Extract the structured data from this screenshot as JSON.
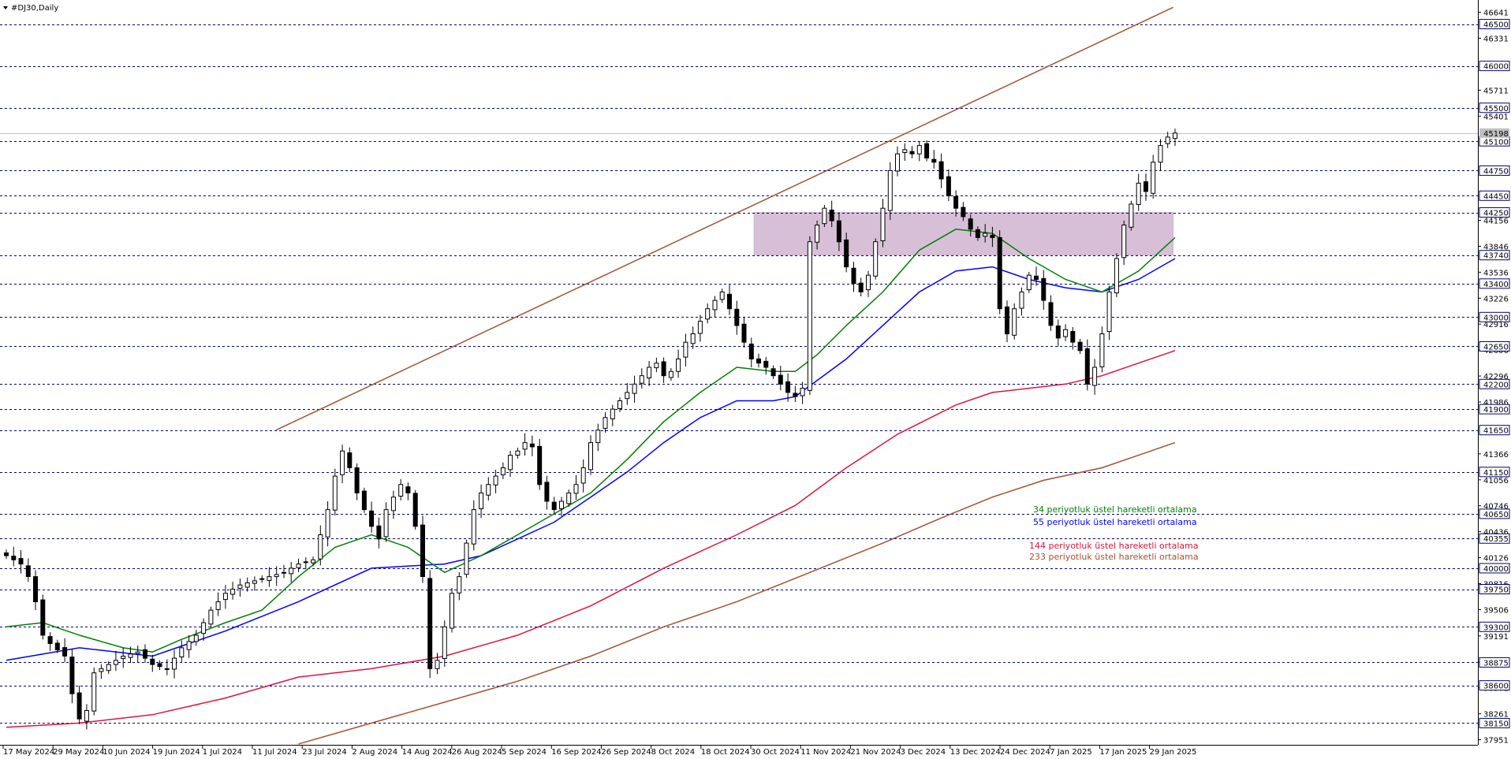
{
  "window": {
    "symbol_label": "#DJ30,Daily"
  },
  "colors": {
    "background": "#ffffff",
    "grid": "#000080",
    "candle": "#000000",
    "ema34": "#008000",
    "ema55": "#0000ff",
    "ema144": "#dc143c",
    "ema233": "#a0522d",
    "trendline": "#a0522d",
    "zone": "#d8bfd8"
  },
  "chart_data": {
    "type": "candlestick",
    "y_range": [
      37900,
      46750
    ],
    "price_ticks": [
      46641,
      46331,
      45711,
      45401,
      44156,
      43846,
      43536,
      43226,
      42916,
      42606,
      42296,
      41986,
      41366,
      41056,
      40746,
      40436,
      40126,
      39816,
      39506,
      39191,
      38881,
      38571,
      38261,
      37951
    ],
    "level_lines": [
      46500,
      46000,
      45500,
      45100,
      44750,
      44450,
      44250,
      43740,
      43400,
      43000,
      42650,
      42200,
      41900,
      41650,
      41150,
      40650,
      40355,
      40000,
      39750,
      39300,
      38875,
      38600,
      38150
    ],
    "last_price": 45198,
    "x_labels": [
      "17 May 2024",
      "29 May 2024",
      "10 Jun 2024",
      "19 Jun 2024",
      "1 Jul 2024",
      "11 Jul 2024",
      "23 Jul 2024",
      "2 Aug 2024",
      "14 Aug 2024",
      "26 Aug 2024",
      "5 Sep 2024",
      "16 Sep 2024",
      "26 Sep 2024",
      "8 Oct 2024",
      "18 Oct 2024",
      "30 Oct 2024",
      "11 Nov 2024",
      "21 Nov 2024",
      "3 Dec 2024",
      "13 Dec 2024",
      "24 Dec 2024",
      "7 Jan 2025",
      "17 Jan 2025",
      "29 Jan 2025"
    ],
    "legend": [
      {
        "label": "34 periyotluk üstel hareketli ortalama",
        "color": "#008000"
      },
      {
        "label": "55 periyotluk üstel hareketli ortalama",
        "color": "#0000ff"
      },
      {
        "label": "144 periyotluk üstel hareketli ortalama",
        "color": "#dc143c"
      },
      {
        "label": "233 periyotluk üstel hareketli ortalama",
        "color": "#a0522d"
      }
    ],
    "zone": {
      "from": "30 Oct 2024",
      "to": "29 Jan 2025",
      "low": 43740,
      "high": 44250
    },
    "trendline": {
      "from": {
        "x": "11 Jul 2024",
        "y": 41650
      },
      "to": {
        "x": "29 Jan 2025",
        "y": 46700
      }
    },
    "close_path": [
      [
        0,
        40150
      ],
      [
        2,
        40050
      ],
      [
        3,
        39900
      ],
      [
        4,
        39600
      ],
      [
        5,
        39200
      ],
      [
        6,
        39100
      ],
      [
        8,
        38950
      ],
      [
        9,
        38500
      ],
      [
        10,
        38200
      ],
      [
        11,
        38300
      ],
      [
        12,
        38750
      ],
      [
        14,
        38850
      ],
      [
        16,
        38950
      ],
      [
        18,
        39000
      ],
      [
        20,
        38850
      ],
      [
        22,
        38800
      ],
      [
        24,
        39050
      ],
      [
        26,
        39200
      ],
      [
        28,
        39500
      ],
      [
        30,
        39700
      ],
      [
        32,
        39800
      ],
      [
        34,
        39850
      ],
      [
        36,
        39900
      ],
      [
        38,
        39950
      ],
      [
        40,
        40050
      ],
      [
        42,
        40100
      ],
      [
        43,
        40400
      ],
      [
        44,
        40700
      ],
      [
        45,
        41100
      ],
      [
        46,
        41400
      ],
      [
        47,
        41200
      ],
      [
        48,
        40900
      ],
      [
        49,
        40700
      ],
      [
        50,
        40500
      ],
      [
        51,
        40350
      ],
      [
        52,
        40700
      ],
      [
        53,
        40850
      ],
      [
        54,
        41000
      ],
      [
        55,
        40900
      ],
      [
        56,
        40500
      ],
      [
        57,
        39900
      ],
      [
        58,
        38800
      ],
      [
        59,
        38900
      ],
      [
        60,
        39300
      ],
      [
        61,
        39700
      ],
      [
        62,
        39900
      ],
      [
        63,
        40300
      ],
      [
        64,
        40700
      ],
      [
        65,
        40900
      ],
      [
        66,
        41000
      ],
      [
        67,
        41100
      ],
      [
        68,
        41200
      ],
      [
        69,
        41350
      ],
      [
        70,
        41400
      ],
      [
        71,
        41500
      ],
      [
        72,
        41450
      ],
      [
        73,
        41000
      ],
      [
        74,
        40800
      ],
      [
        75,
        40700
      ],
      [
        76,
        40800
      ],
      [
        77,
        40900
      ],
      [
        78,
        41000
      ],
      [
        79,
        41200
      ],
      [
        80,
        41500
      ],
      [
        81,
        41650
      ],
      [
        82,
        41800
      ],
      [
        83,
        41900
      ],
      [
        84,
        42000
      ],
      [
        85,
        42100
      ],
      [
        86,
        42200
      ],
      [
        87,
        42300
      ],
      [
        88,
        42400
      ],
      [
        89,
        42450
      ],
      [
        90,
        42300
      ],
      [
        91,
        42350
      ],
      [
        92,
        42500
      ],
      [
        93,
        42700
      ],
      [
        94,
        42800
      ],
      [
        95,
        42950
      ],
      [
        96,
        43100
      ],
      [
        97,
        43200
      ],
      [
        98,
        43300
      ],
      [
        99,
        43100
      ],
      [
        100,
        42900
      ],
      [
        101,
        42700
      ],
      [
        102,
        42500
      ],
      [
        103,
        42450
      ],
      [
        104,
        42400
      ],
      [
        105,
        42300
      ],
      [
        106,
        42200
      ],
      [
        107,
        42100
      ],
      [
        108,
        42050
      ],
      [
        109,
        42150
      ],
      [
        110,
        43900
      ],
      [
        111,
        44100
      ],
      [
        112,
        44300
      ],
      [
        113,
        44150
      ],
      [
        114,
        43900
      ],
      [
        115,
        43600
      ],
      [
        116,
        43400
      ],
      [
        117,
        43300
      ],
      [
        118,
        43500
      ],
      [
        119,
        43900
      ],
      [
        120,
        44300
      ],
      [
        121,
        44750
      ],
      [
        122,
        44950
      ],
      [
        123,
        45000
      ],
      [
        124,
        44950
      ],
      [
        125,
        45050
      ],
      [
        126,
        44900
      ],
      [
        127,
        44850
      ],
      [
        128,
        44650
      ],
      [
        129,
        44450
      ],
      [
        130,
        44300
      ],
      [
        131,
        44200
      ],
      [
        132,
        44050
      ],
      [
        133,
        43950
      ],
      [
        134,
        44000
      ],
      [
        135,
        43950
      ],
      [
        136,
        43100
      ],
      [
        137,
        42800
      ],
      [
        138,
        43100
      ],
      [
        139,
        43300
      ],
      [
        140,
        43500
      ],
      [
        141,
        43450
      ],
      [
        142,
        43200
      ],
      [
        143,
        42900
      ],
      [
        144,
        42750
      ],
      [
        145,
        42850
      ],
      [
        146,
        42700
      ],
      [
        147,
        42600
      ],
      [
        148,
        42200
      ],
      [
        149,
        42400
      ],
      [
        150,
        42800
      ],
      [
        151,
        43300
      ],
      [
        152,
        43700
      ],
      [
        153,
        44100
      ],
      [
        154,
        44350
      ],
      [
        155,
        44600
      ],
      [
        156,
        44500
      ],
      [
        157,
        44850
      ],
      [
        158,
        45050
      ],
      [
        159,
        45150
      ],
      [
        160,
        45198
      ]
    ],
    "ema34_path": [
      [
        0,
        39300
      ],
      [
        5,
        39350
      ],
      [
        10,
        39200
      ],
      [
        16,
        39050
      ],
      [
        20,
        39000
      ],
      [
        24,
        39150
      ],
      [
        30,
        39350
      ],
      [
        35,
        39500
      ],
      [
        40,
        39900
      ],
      [
        45,
        40250
      ],
      [
        50,
        40400
      ],
      [
        55,
        40250
      ],
      [
        60,
        39950
      ],
      [
        65,
        40150
      ],
      [
        70,
        40400
      ],
      [
        75,
        40650
      ],
      [
        80,
        40900
      ],
      [
        85,
        41300
      ],
      [
        90,
        41750
      ],
      [
        95,
        42100
      ],
      [
        100,
        42400
      ],
      [
        105,
        42350
      ],
      [
        108,
        42350
      ],
      [
        111,
        42550
      ],
      [
        115,
        42900
      ],
      [
        120,
        43300
      ],
      [
        125,
        43800
      ],
      [
        130,
        44050
      ],
      [
        135,
        44000
      ],
      [
        140,
        43700
      ],
      [
        145,
        43450
      ],
      [
        150,
        43300
      ],
      [
        155,
        43550
      ],
      [
        160,
        43950
      ]
    ],
    "ema55_path": [
      [
        0,
        38900
      ],
      [
        10,
        39050
      ],
      [
        20,
        38950
      ],
      [
        25,
        39100
      ],
      [
        30,
        39250
      ],
      [
        40,
        39600
      ],
      [
        50,
        40000
      ],
      [
        60,
        40050
      ],
      [
        65,
        40150
      ],
      [
        70,
        40350
      ],
      [
        75,
        40550
      ],
      [
        80,
        40850
      ],
      [
        85,
        41150
      ],
      [
        90,
        41500
      ],
      [
        95,
        41800
      ],
      [
        100,
        42000
      ],
      [
        105,
        42000
      ],
      [
        108,
        42050
      ],
      [
        115,
        42500
      ],
      [
        120,
        42900
      ],
      [
        125,
        43300
      ],
      [
        130,
        43550
      ],
      [
        135,
        43600
      ],
      [
        140,
        43450
      ],
      [
        145,
        43350
      ],
      [
        150,
        43300
      ],
      [
        155,
        43450
      ],
      [
        160,
        43700
      ]
    ],
    "ema144_path": [
      [
        0,
        38100
      ],
      [
        10,
        38150
      ],
      [
        20,
        38250
      ],
      [
        30,
        38450
      ],
      [
        40,
        38700
      ],
      [
        50,
        38800
      ],
      [
        60,
        38950
      ],
      [
        70,
        39200
      ],
      [
        80,
        39550
      ],
      [
        90,
        40000
      ],
      [
        100,
        40400
      ],
      [
        108,
        40750
      ],
      [
        115,
        41200
      ],
      [
        122,
        41600
      ],
      [
        130,
        41950
      ],
      [
        135,
        42100
      ],
      [
        140,
        42150
      ],
      [
        145,
        42200
      ],
      [
        150,
        42300
      ],
      [
        155,
        42450
      ],
      [
        160,
        42600
      ]
    ],
    "ema233_path": [
      [
        40,
        37900
      ],
      [
        50,
        38150
      ],
      [
        60,
        38400
      ],
      [
        70,
        38650
      ],
      [
        80,
        38950
      ],
      [
        90,
        39300
      ],
      [
        100,
        39600
      ],
      [
        110,
        39950
      ],
      [
        120,
        40300
      ],
      [
        128,
        40600
      ],
      [
        135,
        40850
      ],
      [
        142,
        41050
      ],
      [
        150,
        41200
      ],
      [
        155,
        41350
      ],
      [
        160,
        41500
      ]
    ]
  }
}
